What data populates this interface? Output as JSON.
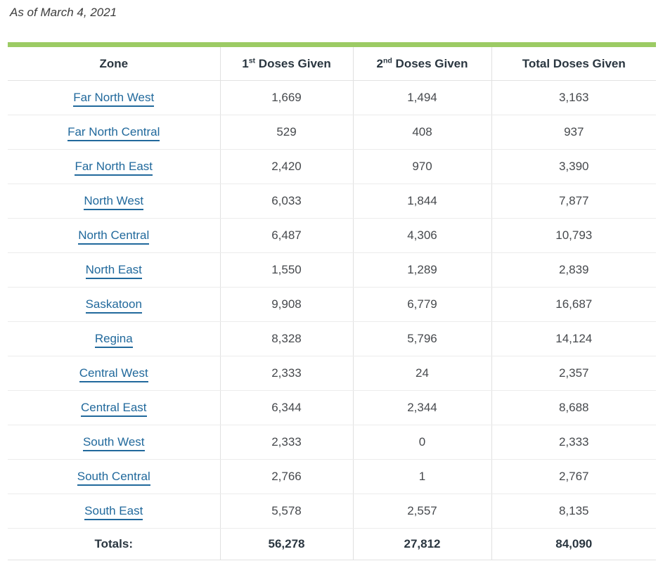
{
  "title": {
    "as_of": "As of March 4, 2021"
  },
  "colors": {
    "accent_green": "#9ccb64",
    "link_blue": "#21699c",
    "header_text": "#2a3640"
  },
  "table": {
    "header": {
      "zone": "Zone",
      "first": {
        "base": "1",
        "sup": "st",
        "rest": " Doses Given"
      },
      "second": {
        "base": "2",
        "sup": "nd",
        "rest": " Doses Given"
      },
      "total": "Total Doses Given"
    },
    "totals_label": "Totals:"
  },
  "chart_data": {
    "type": "table",
    "title": "As of March 4, 2021",
    "columns": [
      "Zone",
      "1st Doses Given",
      "2nd Doses Given",
      "Total Doses Given"
    ],
    "rows": [
      {
        "zone": "Far North West",
        "first": "1,669",
        "second": "1,494",
        "total": "3,163"
      },
      {
        "zone": "Far North Central",
        "first": "529",
        "second": "408",
        "total": "937"
      },
      {
        "zone": "Far North East",
        "first": "2,420",
        "second": "970",
        "total": "3,390"
      },
      {
        "zone": "North West",
        "first": "6,033",
        "second": "1,844",
        "total": "7,877"
      },
      {
        "zone": "North Central",
        "first": "6,487",
        "second": "4,306",
        "total": "10,793"
      },
      {
        "zone": "North East",
        "first": "1,550",
        "second": "1,289",
        "total": "2,839"
      },
      {
        "zone": "Saskatoon",
        "first": "9,908",
        "second": "6,779",
        "total": "16,687"
      },
      {
        "zone": "Regina",
        "first": "8,328",
        "second": "5,796",
        "total": "14,124"
      },
      {
        "zone": "Central West",
        "first": "2,333",
        "second": "24",
        "total": "2,357"
      },
      {
        "zone": "Central East",
        "first": "6,344",
        "second": "2,344",
        "total": "8,688"
      },
      {
        "zone": "South West",
        "first": "2,333",
        "second": "0",
        "total": "2,333"
      },
      {
        "zone": "South Central",
        "first": "2,766",
        "second": "1",
        "total": "2,767"
      },
      {
        "zone": "South East",
        "first": "5,578",
        "second": "2,557",
        "total": "8,135"
      }
    ],
    "totals": {
      "first": "56,278",
      "second": "27,812",
      "total": "84,090"
    }
  }
}
